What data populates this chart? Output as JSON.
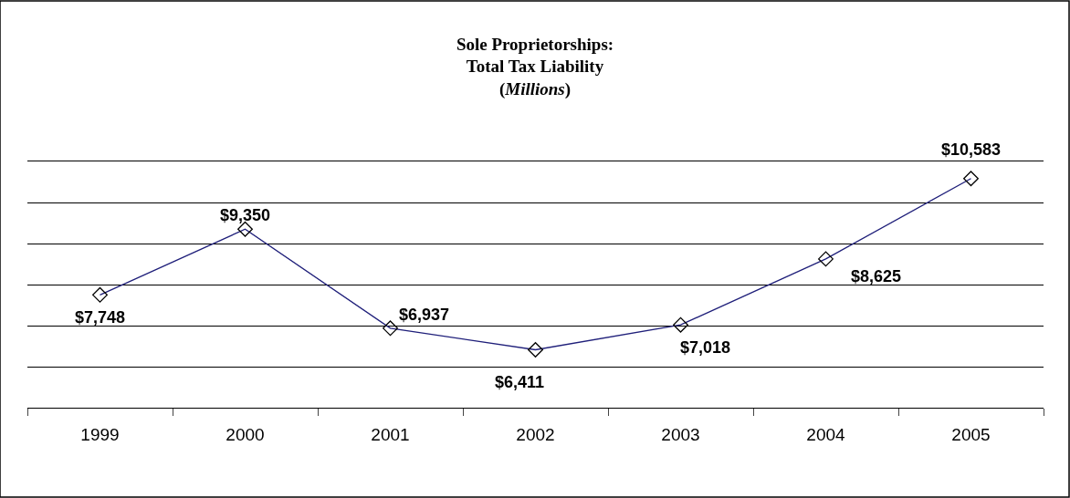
{
  "chart_data": {
    "type": "line",
    "title": "Sole Proprietorships:\nTotal Tax Liability\n(Millions)",
    "categories": [
      "1999",
      "2000",
      "2001",
      "2002",
      "2003",
      "2004",
      "2005"
    ],
    "series": [
      {
        "color": "#1f1f7a",
        "values": [
          7748,
          9350,
          6937,
          6411,
          7018,
          8625,
          10583
        ],
        "value_labels": [
          "$7,748",
          "$9,350",
          "$6,937",
          "$6,411",
          "$7,018",
          "$8,625",
          "$10,583"
        ]
      }
    ],
    "ylim": [
      5000,
      11000
    ],
    "yticks": [
      {
        "value": 5000,
        "label": null
      },
      {
        "value": 6000,
        "label": null
      },
      {
        "value": 7000,
        "label": null
      },
      {
        "value": 8000,
        "label": null
      },
      {
        "value": 9000,
        "label": null
      },
      {
        "value": 10000,
        "label": null
      },
      {
        "value": 11000,
        "label": null
      }
    ],
    "tick_labels": "x",
    "grid": "y",
    "marker": "diamond",
    "line_style": "solid"
  }
}
